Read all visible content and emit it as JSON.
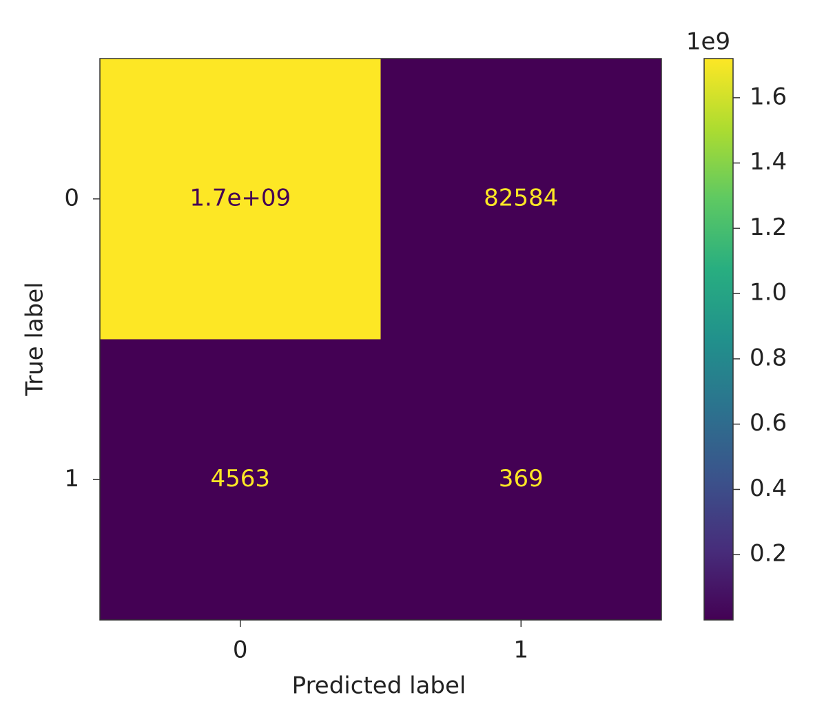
{
  "chart_data": {
    "type": "heatmap",
    "x_label": "Predicted label",
    "y_label": "True label",
    "x_categories": [
      "0",
      "1"
    ],
    "y_categories": [
      "0",
      "1"
    ],
    "values": [
      [
        1720000000,
        82584
      ],
      [
        4563,
        369
      ]
    ],
    "value_labels": [
      [
        "1.7e+09",
        "82584"
      ],
      [
        "4563",
        "369"
      ]
    ],
    "cmap": "viridis",
    "colorbar": {
      "lim": [
        369,
        1720000000
      ],
      "ticks": [
        {
          "value": 200000000,
          "label": "0.2"
        },
        {
          "value": 400000000,
          "label": "0.4"
        },
        {
          "value": 600000000,
          "label": "0.6"
        },
        {
          "value": 800000000,
          "label": "0.8"
        },
        {
          "value": 1000000000,
          "label": "1.0"
        },
        {
          "value": 1200000000,
          "label": "1.2"
        },
        {
          "value": 1400000000,
          "label": "1.4"
        },
        {
          "value": 1600000000,
          "label": "1.6"
        }
      ],
      "offset_label": "1e9"
    }
  }
}
